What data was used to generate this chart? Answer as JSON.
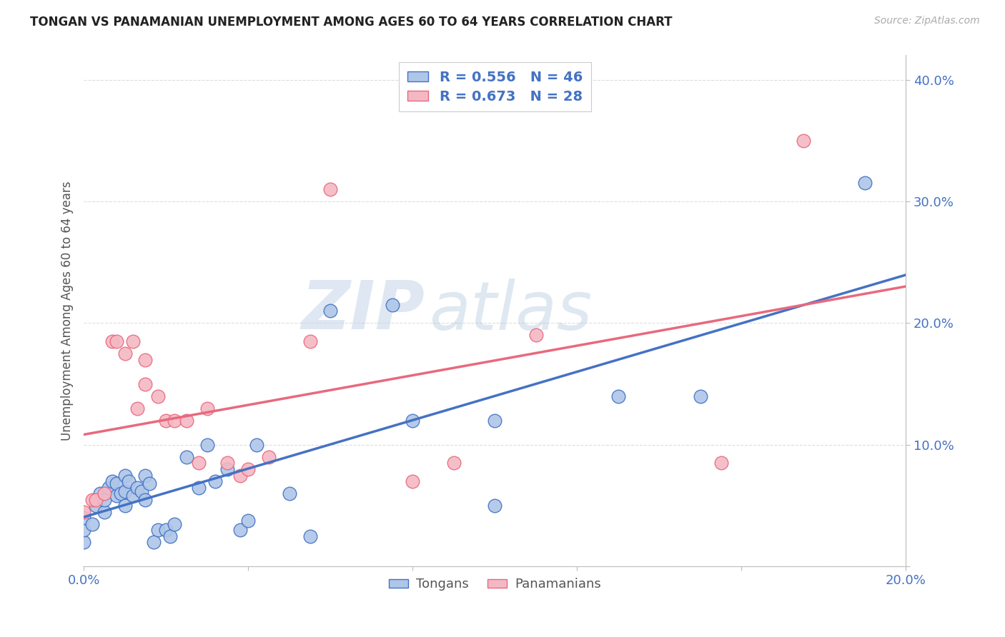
{
  "title": "TONGAN VS PANAMANIAN UNEMPLOYMENT AMONG AGES 60 TO 64 YEARS CORRELATION CHART",
  "source": "Source: ZipAtlas.com",
  "ylabel": "Unemployment Among Ages 60 to 64 years",
  "xlim": [
    0.0,
    0.2
  ],
  "ylim": [
    0.0,
    0.42
  ],
  "xticks": [
    0.0,
    0.04,
    0.08,
    0.12,
    0.16,
    0.2
  ],
  "yticks": [
    0.0,
    0.1,
    0.2,
    0.3,
    0.4
  ],
  "tongan_color": "#aec6e8",
  "panamanian_color": "#f4b8c4",
  "tongan_line_color": "#4472c4",
  "panamanian_line_color": "#e8697d",
  "legend_text_color": "#4472c4",
  "R_tongan": 0.556,
  "N_tongan": 46,
  "R_panamanian": 0.673,
  "N_panamanian": 28,
  "watermark_zip": "ZIP",
  "watermark_atlas": "atlas",
  "background_color": "#ffffff",
  "grid_color": "#dddddd",
  "tongan_scatter_x": [
    0.0,
    0.0,
    0.0,
    0.002,
    0.003,
    0.004,
    0.005,
    0.005,
    0.006,
    0.007,
    0.008,
    0.008,
    0.009,
    0.01,
    0.01,
    0.01,
    0.011,
    0.012,
    0.013,
    0.014,
    0.015,
    0.015,
    0.016,
    0.017,
    0.018,
    0.02,
    0.021,
    0.022,
    0.025,
    0.028,
    0.03,
    0.032,
    0.035,
    0.038,
    0.04,
    0.042,
    0.05,
    0.055,
    0.06,
    0.075,
    0.08,
    0.1,
    0.1,
    0.13,
    0.15,
    0.19
  ],
  "tongan_scatter_y": [
    0.02,
    0.03,
    0.04,
    0.035,
    0.05,
    0.06,
    0.045,
    0.055,
    0.065,
    0.07,
    0.058,
    0.068,
    0.06,
    0.05,
    0.062,
    0.075,
    0.07,
    0.058,
    0.065,
    0.062,
    0.055,
    0.075,
    0.068,
    0.02,
    0.03,
    0.03,
    0.025,
    0.035,
    0.09,
    0.065,
    0.1,
    0.07,
    0.08,
    0.03,
    0.038,
    0.1,
    0.06,
    0.025,
    0.21,
    0.215,
    0.12,
    0.12,
    0.05,
    0.14,
    0.14,
    0.315
  ],
  "panamanian_scatter_x": [
    0.0,
    0.002,
    0.003,
    0.005,
    0.007,
    0.008,
    0.01,
    0.012,
    0.013,
    0.015,
    0.015,
    0.018,
    0.02,
    0.022,
    0.025,
    0.028,
    0.03,
    0.035,
    0.038,
    0.04,
    0.045,
    0.055,
    0.06,
    0.08,
    0.09,
    0.11,
    0.155,
    0.175
  ],
  "panamanian_scatter_y": [
    0.045,
    0.055,
    0.055,
    0.06,
    0.185,
    0.185,
    0.175,
    0.185,
    0.13,
    0.17,
    0.15,
    0.14,
    0.12,
    0.12,
    0.12,
    0.085,
    0.13,
    0.085,
    0.075,
    0.08,
    0.09,
    0.185,
    0.31,
    0.07,
    0.085,
    0.19,
    0.085,
    0.35
  ]
}
